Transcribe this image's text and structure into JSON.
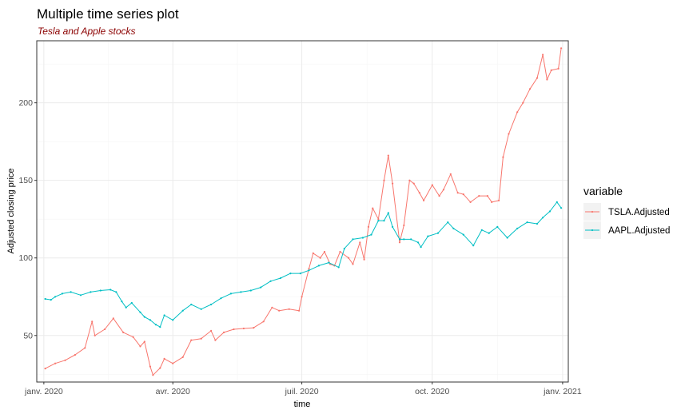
{
  "colors": {
    "tsla": "#f8766d",
    "aapl": "#00bfc4",
    "grid": "#ebebeb",
    "panel_border": "#333333"
  },
  "chart_data": {
    "type": "line",
    "title": "Multiple time series plot",
    "subtitle": "Tesla and Apple stocks",
    "xlabel": "time",
    "ylabel": "Adjusted closing price",
    "xlim": [
      "2019-12-27",
      "2021-01-05"
    ],
    "ylim": [
      20,
      240
    ],
    "x_ticks": [
      {
        "date": "2020-01-01",
        "label": "janv. 2020"
      },
      {
        "date": "2020-04-01",
        "label": "avr. 2020"
      },
      {
        "date": "2020-07-01",
        "label": "juil. 2020"
      },
      {
        "date": "2020-10-01",
        "label": "oct. 2020"
      },
      {
        "date": "2021-01-01",
        "label": "janv. 2021"
      }
    ],
    "y_ticks": [
      50,
      100,
      150,
      200
    ],
    "grid": true,
    "legend": {
      "title": "variable",
      "position": "right"
    },
    "series": [
      {
        "name": "TSLA.Adjusted",
        "color": "#f8766d",
        "points": [
          [
            "2020-01-02",
            28.7
          ],
          [
            "2020-01-09",
            32.0
          ],
          [
            "2020-01-16",
            34.0
          ],
          [
            "2020-01-23",
            37.5
          ],
          [
            "2020-01-30",
            42.0
          ],
          [
            "2020-02-04",
            59.0
          ],
          [
            "2020-02-06",
            50.0
          ],
          [
            "2020-02-13",
            54.0
          ],
          [
            "2020-02-19",
            61.0
          ],
          [
            "2020-02-26",
            52.0
          ],
          [
            "2020-03-04",
            49.0
          ],
          [
            "2020-03-09",
            43.0
          ],
          [
            "2020-03-12",
            46.0
          ],
          [
            "2020-03-16",
            30.0
          ],
          [
            "2020-03-18",
            24.5
          ],
          [
            "2020-03-23",
            29.0
          ],
          [
            "2020-03-26",
            35.0
          ],
          [
            "2020-04-01",
            32.0
          ],
          [
            "2020-04-08",
            36.0
          ],
          [
            "2020-04-14",
            47.0
          ],
          [
            "2020-04-21",
            48.0
          ],
          [
            "2020-04-28",
            53.0
          ],
          [
            "2020-05-01",
            47.0
          ],
          [
            "2020-05-07",
            52.0
          ],
          [
            "2020-05-14",
            54.0
          ],
          [
            "2020-05-21",
            54.5
          ],
          [
            "2020-05-28",
            55.0
          ],
          [
            "2020-06-04",
            59.0
          ],
          [
            "2020-06-10",
            68.0
          ],
          [
            "2020-06-15",
            66.0
          ],
          [
            "2020-06-22",
            67.0
          ],
          [
            "2020-06-29",
            66.0
          ],
          [
            "2020-07-01",
            75.0
          ],
          [
            "2020-07-06",
            93.0
          ],
          [
            "2020-07-09",
            103.0
          ],
          [
            "2020-07-14",
            100.0
          ],
          [
            "2020-07-17",
            104.0
          ],
          [
            "2020-07-21",
            96.0
          ],
          [
            "2020-07-24",
            95.0
          ],
          [
            "2020-07-28",
            104.0
          ],
          [
            "2020-08-03",
            100.0
          ],
          [
            "2020-08-06",
            96.0
          ],
          [
            "2020-08-11",
            110.0
          ],
          [
            "2020-08-14",
            99.0
          ],
          [
            "2020-08-17",
            120.0
          ],
          [
            "2020-08-20",
            132.0
          ],
          [
            "2020-08-24",
            125.0
          ],
          [
            "2020-08-28",
            150.0
          ],
          [
            "2020-08-31",
            166.0
          ],
          [
            "2020-09-03",
            148.0
          ],
          [
            "2020-09-08",
            110.0
          ],
          [
            "2020-09-11",
            121.0
          ],
          [
            "2020-09-15",
            150.0
          ],
          [
            "2020-09-18",
            148.0
          ],
          [
            "2020-09-22",
            142.0
          ],
          [
            "2020-09-25",
            137.0
          ],
          [
            "2020-10-01",
            147.0
          ],
          [
            "2020-10-06",
            140.0
          ],
          [
            "2020-10-09",
            144.0
          ],
          [
            "2020-10-14",
            154.0
          ],
          [
            "2020-10-19",
            142.0
          ],
          [
            "2020-10-23",
            141.0
          ],
          [
            "2020-10-28",
            136.0
          ],
          [
            "2020-11-03",
            140.0
          ],
          [
            "2020-11-09",
            140.0
          ],
          [
            "2020-11-12",
            136.0
          ],
          [
            "2020-11-17",
            137.0
          ],
          [
            "2020-11-20",
            165.0
          ],
          [
            "2020-11-24",
            180.0
          ],
          [
            "2020-11-30",
            194.0
          ],
          [
            "2020-12-04",
            200.0
          ],
          [
            "2020-12-09",
            209.0
          ],
          [
            "2020-12-14",
            216.0
          ],
          [
            "2020-12-18",
            231.0
          ],
          [
            "2020-12-21",
            215.0
          ],
          [
            "2020-12-24",
            221.0
          ],
          [
            "2020-12-29",
            222.0
          ],
          [
            "2020-12-31",
            235.2
          ]
        ]
      },
      {
        "name": "AAPL.Adjusted",
        "color": "#00bfc4",
        "points": [
          [
            "2020-01-02",
            73.6
          ],
          [
            "2020-01-06",
            73.0
          ],
          [
            "2020-01-09",
            75.0
          ],
          [
            "2020-01-14",
            77.0
          ],
          [
            "2020-01-20",
            78.0
          ],
          [
            "2020-01-27",
            76.0
          ],
          [
            "2020-02-03",
            78.0
          ],
          [
            "2020-02-10",
            79.0
          ],
          [
            "2020-02-17",
            79.5
          ],
          [
            "2020-02-21",
            78.0
          ],
          [
            "2020-02-25",
            72.0
          ],
          [
            "2020-02-28",
            68.0
          ],
          [
            "2020-03-03",
            71.0
          ],
          [
            "2020-03-09",
            65.0
          ],
          [
            "2020-03-12",
            62.0
          ],
          [
            "2020-03-16",
            60.0
          ],
          [
            "2020-03-20",
            57.0
          ],
          [
            "2020-03-23",
            55.5
          ],
          [
            "2020-03-26",
            63.0
          ],
          [
            "2020-04-01",
            60.0
          ],
          [
            "2020-04-08",
            66.0
          ],
          [
            "2020-04-14",
            70.0
          ],
          [
            "2020-04-21",
            67.0
          ],
          [
            "2020-04-28",
            70.0
          ],
          [
            "2020-05-05",
            74.0
          ],
          [
            "2020-05-12",
            77.0
          ],
          [
            "2020-05-19",
            78.0
          ],
          [
            "2020-05-26",
            79.0
          ],
          [
            "2020-06-02",
            81.0
          ],
          [
            "2020-06-09",
            85.0
          ],
          [
            "2020-06-16",
            87.0
          ],
          [
            "2020-06-23",
            90.0
          ],
          [
            "2020-06-30",
            90.0
          ],
          [
            "2020-07-06",
            92.0
          ],
          [
            "2020-07-13",
            95.0
          ],
          [
            "2020-07-20",
            97.0
          ],
          [
            "2020-07-27",
            94.0
          ],
          [
            "2020-07-31",
            106.0
          ],
          [
            "2020-08-06",
            112.0
          ],
          [
            "2020-08-13",
            113.0
          ],
          [
            "2020-08-19",
            115.0
          ],
          [
            "2020-08-24",
            124.0
          ],
          [
            "2020-08-28",
            124.0
          ],
          [
            "2020-08-31",
            129.0
          ],
          [
            "2020-09-03",
            120.0
          ],
          [
            "2020-09-08",
            112.0
          ],
          [
            "2020-09-11",
            112.0
          ],
          [
            "2020-09-16",
            112.0
          ],
          [
            "2020-09-21",
            110.0
          ],
          [
            "2020-09-23",
            107.0
          ],
          [
            "2020-09-28",
            114.0
          ],
          [
            "2020-10-05",
            116.0
          ],
          [
            "2020-10-12",
            123.0
          ],
          [
            "2020-10-16",
            119.0
          ],
          [
            "2020-10-23",
            115.0
          ],
          [
            "2020-10-30",
            108.0
          ],
          [
            "2020-11-05",
            118.0
          ],
          [
            "2020-11-10",
            116.0
          ],
          [
            "2020-11-16",
            120.0
          ],
          [
            "2020-11-23",
            113.0
          ],
          [
            "2020-11-30",
            119.0
          ],
          [
            "2020-12-07",
            123.0
          ],
          [
            "2020-12-14",
            122.0
          ],
          [
            "2020-12-18",
            126.0
          ],
          [
            "2020-12-23",
            130.0
          ],
          [
            "2020-12-28",
            136.0
          ],
          [
            "2020-12-31",
            132.2
          ]
        ]
      }
    ]
  }
}
